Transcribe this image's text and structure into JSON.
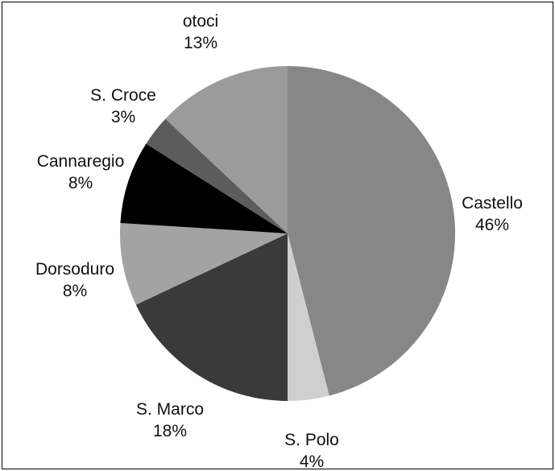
{
  "chart_data": {
    "type": "pie",
    "title": "",
    "start_angle_deg": 0,
    "direction": "clockwise",
    "slices": [
      {
        "label": "Castello",
        "value": 46,
        "display": "46%",
        "color": "#878787"
      },
      {
        "label": "S. Polo",
        "value": 4,
        "display": "4%",
        "color": "#cfcfcf"
      },
      {
        "label": "S. Marco",
        "value": 18,
        "display": "18%",
        "color": "#3a3a3a"
      },
      {
        "label": "Dorsoduro",
        "value": 8,
        "display": "8%",
        "color": "#a3a3a3"
      },
      {
        "label": "Cannaregio",
        "value": 8,
        "display": "8%",
        "color": "#000000"
      },
      {
        "label": "S. Croce",
        "value": 3,
        "display": "3%",
        "color": "#5c5c5c"
      },
      {
        "label": "otoci",
        "value": 13,
        "display": "13%",
        "color": "#9b9b9b"
      }
    ],
    "legend": "none"
  }
}
